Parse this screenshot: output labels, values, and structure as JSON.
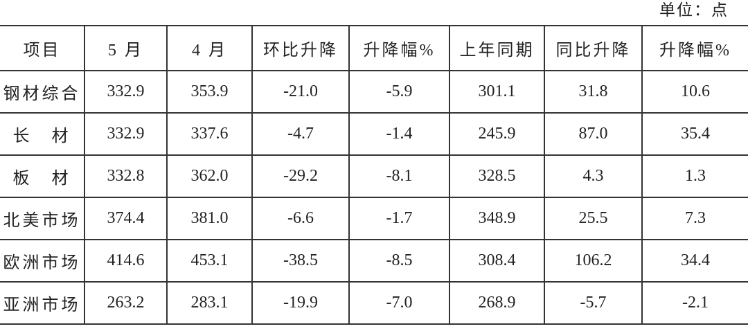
{
  "unit_label": "单位：点",
  "table": {
    "headers": [
      "项目",
      "5 月",
      "4 月",
      "环比升降",
      "升降幅%",
      "上年同期",
      "同比升降",
      "升降幅%"
    ],
    "rows": [
      [
        "钢材综合",
        "332.9",
        "353.9",
        "-21.0",
        "-5.9",
        "301.1",
        "31.8",
        "10.6"
      ],
      [
        "长　材",
        "332.9",
        "337.6",
        "-4.7",
        "-1.4",
        "245.9",
        "87.0",
        "35.4"
      ],
      [
        "板　材",
        "332.8",
        "362.0",
        "-29.2",
        "-8.1",
        "328.5",
        "4.3",
        "1.3"
      ],
      [
        "北美市场",
        "374.4",
        "381.0",
        "-6.6",
        "-1.7",
        "348.9",
        "25.5",
        "7.3"
      ],
      [
        "欧洲市场",
        "414.6",
        "453.1",
        "-38.5",
        "-8.5",
        "308.4",
        "106.2",
        "34.4"
      ],
      [
        "亚洲市场",
        "263.2",
        "283.1",
        "-19.9",
        "-7.0",
        "268.9",
        "-5.7",
        "-2.1"
      ]
    ]
  }
}
